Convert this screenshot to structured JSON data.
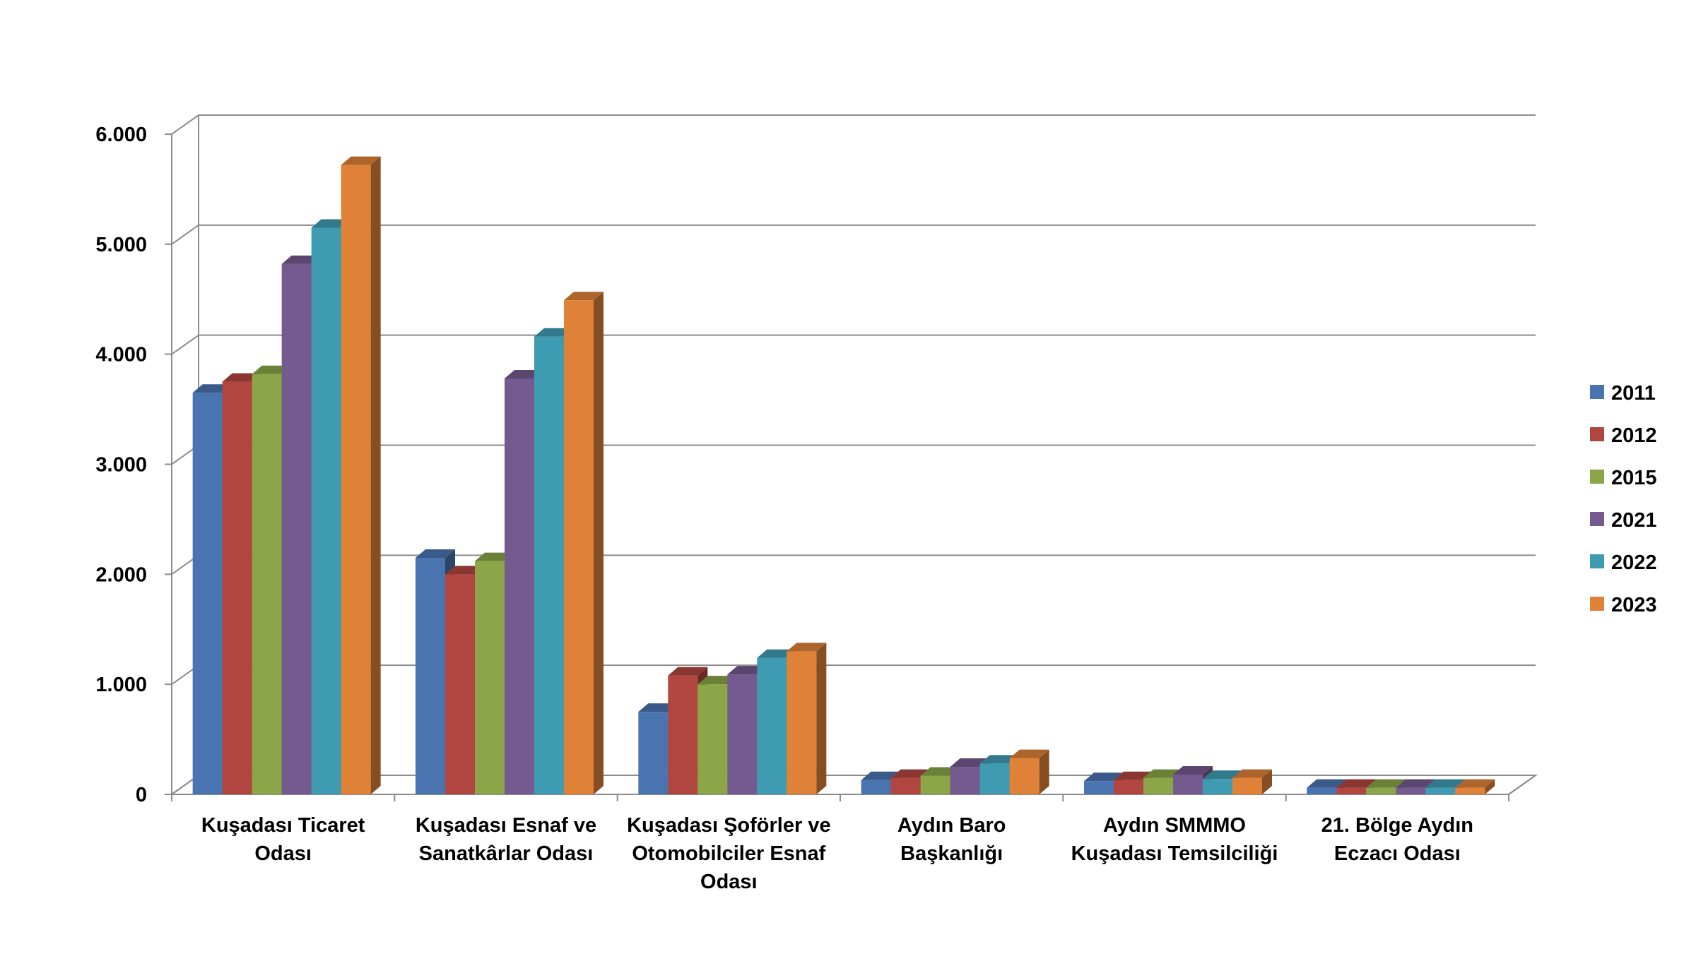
{
  "chart_data": {
    "type": "bar",
    "title": "",
    "xlabel": "",
    "ylabel": "",
    "ylim": [
      0,
      6000
    ],
    "yticks": [
      0,
      1000,
      2000,
      3000,
      4000,
      5000,
      6000
    ],
    "ytick_labels": [
      "0",
      "1.000",
      "2.000",
      "3.000",
      "4.000",
      "5.000",
      "6.000"
    ],
    "categories": [
      [
        "Kuşadası Ticaret",
        "Odası"
      ],
      [
        "Kuşadası Esnaf ve",
        "Sanatkârlar Odası"
      ],
      [
        "Kuşadası Şoförler ve",
        "Otomobilciler Esnaf",
        "Odası"
      ],
      [
        "Aydın Baro",
        "Başkanlığı"
      ],
      [
        "Aydın SMMMO",
        "Kuşadası Temsilciliği"
      ],
      [
        "21. Bölge Aydın",
        "Eczacı Odası"
      ]
    ],
    "series": [
      {
        "name": "2011",
        "color": "#4a74b0",
        "values": [
          3650,
          2150,
          750,
          130,
          120,
          60
        ]
      },
      {
        "name": "2012",
        "color": "#b1453f",
        "values": [
          3750,
          2000,
          1080,
          150,
          130,
          60
        ]
      },
      {
        "name": "2015",
        "color": "#8ba548",
        "values": [
          3820,
          2120,
          1000,
          170,
          150,
          60
        ]
      },
      {
        "name": "2021",
        "color": "#745a8e",
        "values": [
          4820,
          3780,
          1090,
          250,
          180,
          60
        ]
      },
      {
        "name": "2022",
        "color": "#3f9bb2",
        "values": [
          5150,
          4160,
          1240,
          280,
          140,
          60
        ]
      },
      {
        "name": "2023",
        "color": "#df8238",
        "values": [
          5720,
          4490,
          1300,
          330,
          150,
          60
        ]
      }
    ],
    "grid": true,
    "legend_position": "right"
  }
}
